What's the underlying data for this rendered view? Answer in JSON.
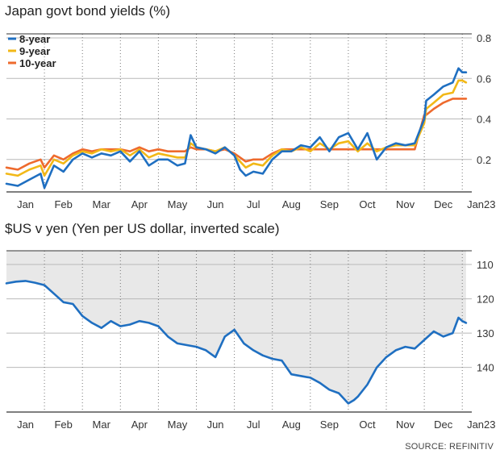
{
  "source": "SOURCE: REFINITIV",
  "colors": {
    "y8": "#1f6fc1",
    "y9": "#f2b817",
    "y10": "#ee6a2d",
    "usd": "#1f6fc1",
    "fill": "#e8e8e8"
  },
  "chart_data": [
    {
      "type": "line",
      "title": "Japan govt bond yields (%)",
      "x_ticks": [
        "Jan",
        "Feb",
        "Mar",
        "Apr",
        "May",
        "Jun",
        "Jul",
        "Aug",
        "Sep",
        "Oct",
        "Nov",
        "Dec",
        "Jan23"
      ],
      "y_ticks": [
        "0.2",
        "0.4",
        "0.6",
        "0.8"
      ],
      "ylim": [
        0.04,
        0.82
      ],
      "grid": true,
      "legend": "top-left",
      "x_domain": [
        0,
        12.25
      ],
      "series": [
        {
          "name": "8-year",
          "color_key": "y8",
          "x": [
            0.0,
            0.3,
            0.6,
            0.9,
            1.0,
            1.25,
            1.5,
            1.75,
            2.0,
            2.25,
            2.5,
            2.75,
            3.0,
            3.25,
            3.5,
            3.75,
            4.0,
            4.25,
            4.5,
            4.7,
            4.85,
            5.0,
            5.25,
            5.5,
            5.75,
            6.0,
            6.15,
            6.3,
            6.5,
            6.75,
            7.0,
            7.25,
            7.5,
            7.75,
            8.0,
            8.25,
            8.5,
            8.75,
            9.0,
            9.25,
            9.5,
            9.75,
            10.0,
            10.25,
            10.5,
            10.75,
            11.0,
            11.05,
            11.25,
            11.5,
            11.75,
            11.9,
            12.0,
            12.1
          ],
          "values": [
            0.08,
            0.07,
            0.1,
            0.13,
            0.06,
            0.17,
            0.14,
            0.2,
            0.23,
            0.21,
            0.23,
            0.22,
            0.24,
            0.19,
            0.24,
            0.17,
            0.2,
            0.2,
            0.17,
            0.18,
            0.32,
            0.26,
            0.25,
            0.23,
            0.26,
            0.22,
            0.15,
            0.12,
            0.14,
            0.13,
            0.2,
            0.24,
            0.24,
            0.27,
            0.26,
            0.31,
            0.24,
            0.31,
            0.33,
            0.25,
            0.33,
            0.2,
            0.26,
            0.28,
            0.27,
            0.28,
            0.4,
            0.49,
            0.52,
            0.56,
            0.58,
            0.65,
            0.63,
            0.63
          ]
        },
        {
          "name": "9-year",
          "color_key": "y9",
          "x": [
            0.0,
            0.3,
            0.6,
            0.9,
            1.0,
            1.25,
            1.5,
            1.75,
            2.0,
            2.25,
            2.5,
            2.75,
            3.0,
            3.25,
            3.5,
            3.75,
            4.0,
            4.25,
            4.5,
            4.7,
            4.85,
            5.0,
            5.25,
            5.5,
            5.75,
            6.0,
            6.15,
            6.3,
            6.5,
            6.75,
            7.0,
            7.25,
            7.5,
            7.75,
            8.0,
            8.25,
            8.5,
            8.75,
            9.0,
            9.25,
            9.5,
            9.75,
            10.0,
            10.25,
            10.5,
            10.75,
            11.0,
            11.05,
            11.25,
            11.5,
            11.75,
            11.9,
            12.0,
            12.1
          ],
          "values": [
            0.13,
            0.12,
            0.15,
            0.17,
            0.12,
            0.2,
            0.18,
            0.22,
            0.24,
            0.23,
            0.25,
            0.24,
            0.25,
            0.22,
            0.25,
            0.21,
            0.23,
            0.22,
            0.21,
            0.21,
            0.28,
            0.26,
            0.25,
            0.24,
            0.26,
            0.22,
            0.19,
            0.16,
            0.18,
            0.17,
            0.22,
            0.25,
            0.24,
            0.26,
            0.24,
            0.28,
            0.25,
            0.28,
            0.29,
            0.24,
            0.28,
            0.24,
            0.26,
            0.27,
            0.27,
            0.27,
            0.38,
            0.45,
            0.48,
            0.52,
            0.53,
            0.59,
            0.59,
            0.58
          ]
        },
        {
          "name": "10-year",
          "color_key": "y10",
          "x": [
            0.0,
            0.3,
            0.6,
            0.9,
            1.0,
            1.25,
            1.5,
            1.75,
            2.0,
            2.25,
            2.5,
            2.75,
            3.0,
            3.25,
            3.5,
            3.75,
            4.0,
            4.25,
            4.5,
            4.7,
            4.85,
            5.0,
            5.25,
            5.5,
            5.75,
            6.0,
            6.15,
            6.3,
            6.5,
            6.75,
            7.0,
            7.25,
            7.5,
            7.75,
            8.0,
            8.25,
            8.5,
            8.75,
            9.0,
            9.25,
            9.5,
            9.75,
            10.0,
            10.25,
            10.5,
            10.75,
            11.0,
            11.05,
            11.25,
            11.5,
            11.75,
            11.9,
            12.0,
            12.1
          ],
          "values": [
            0.16,
            0.15,
            0.18,
            0.2,
            0.16,
            0.22,
            0.2,
            0.23,
            0.25,
            0.24,
            0.25,
            0.25,
            0.25,
            0.24,
            0.26,
            0.24,
            0.25,
            0.24,
            0.24,
            0.24,
            0.26,
            0.25,
            0.25,
            0.24,
            0.25,
            0.23,
            0.21,
            0.19,
            0.2,
            0.2,
            0.23,
            0.25,
            0.25,
            0.25,
            0.25,
            0.25,
            0.25,
            0.25,
            0.25,
            0.25,
            0.25,
            0.25,
            0.25,
            0.25,
            0.25,
            0.25,
            0.42,
            0.42,
            0.45,
            0.48,
            0.5,
            0.5,
            0.5,
            0.5
          ]
        }
      ]
    },
    {
      "type": "area",
      "title": "$US v yen (Yen per US dollar, inverted scale)",
      "x_ticks": [
        "Jan",
        "Feb",
        "Mar",
        "Apr",
        "May",
        "Jun",
        "Jul",
        "Aug",
        "Sep",
        "Oct",
        "Nov",
        "Dec",
        "Jan23"
      ],
      "y_ticks": [
        "110",
        "120",
        "130",
        "140"
      ],
      "ylim": [
        106,
        153
      ],
      "inverted": true,
      "grid": true,
      "x_domain": [
        0,
        12.25
      ],
      "series": [
        {
          "name": "",
          "color_key": "usd",
          "x": [
            0.0,
            0.25,
            0.5,
            0.75,
            1.0,
            1.25,
            1.5,
            1.75,
            2.0,
            2.25,
            2.5,
            2.75,
            3.0,
            3.25,
            3.5,
            3.75,
            4.0,
            4.25,
            4.5,
            4.75,
            5.0,
            5.25,
            5.5,
            5.75,
            6.0,
            6.25,
            6.5,
            6.75,
            7.0,
            7.25,
            7.5,
            7.75,
            8.0,
            8.25,
            8.5,
            8.75,
            9.0,
            9.15,
            9.25,
            9.5,
            9.75,
            10.0,
            10.25,
            10.5,
            10.75,
            11.0,
            11.25,
            11.5,
            11.75,
            11.9,
            12.0,
            12.1
          ],
          "values": [
            115.5,
            115.0,
            114.8,
            115.3,
            116.0,
            118.5,
            121.0,
            121.5,
            125.0,
            127.0,
            128.5,
            126.5,
            128.0,
            127.5,
            126.5,
            127.0,
            128.0,
            131.0,
            133.0,
            133.5,
            134.0,
            135.0,
            137.0,
            131.0,
            129.0,
            133.0,
            135.0,
            136.5,
            137.5,
            138.0,
            142.0,
            142.5,
            143.0,
            144.5,
            146.5,
            147.5,
            150.5,
            149.5,
            148.5,
            145.0,
            140.0,
            137.0,
            135.0,
            134.0,
            134.5,
            132.0,
            129.5,
            131.0,
            130.0,
            125.5,
            126.5,
            127.0
          ]
        }
      ]
    }
  ]
}
